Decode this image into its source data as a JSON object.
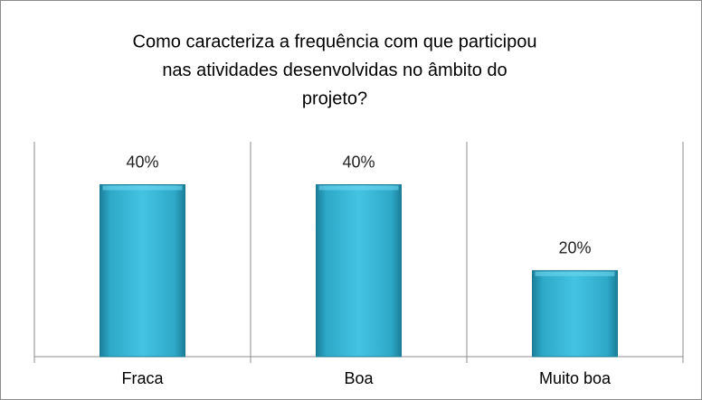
{
  "chart_data": {
    "type": "bar",
    "title": [
      "Como caracteriza a frequência com que participou",
      "nas atividades desenvolvidas no âmbito do",
      "projeto?"
    ],
    "categories": [
      "Fraca",
      "Boa",
      "Muito boa"
    ],
    "values": [
      40,
      40,
      20
    ],
    "value_labels": [
      "40%",
      "40%",
      "20%"
    ],
    "color": "#31b5d5",
    "ylim": [
      0,
      50
    ]
  }
}
